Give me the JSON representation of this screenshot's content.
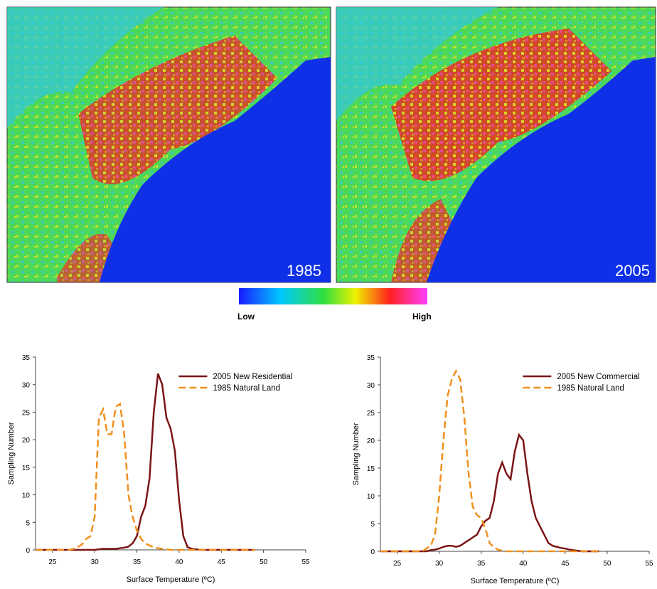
{
  "maps": [
    {
      "label": "1985"
    },
    {
      "label": "2005"
    }
  ],
  "colorbar": {
    "low": "Low",
    "high": "High"
  },
  "chart_data": [
    {
      "type": "line",
      "legend": "upper right",
      "xlabel": "Surface Temperature (ºC)",
      "ylabel": "Sampling Number",
      "xlim": [
        23,
        55
      ],
      "xticks": [
        25,
        30,
        35,
        40,
        45,
        50,
        55
      ],
      "ylim": [
        0,
        35
      ],
      "yticks": [
        0,
        5,
        10,
        15,
        20,
        25,
        30,
        35
      ],
      "x": [
        23,
        23.5,
        24,
        24.5,
        25,
        25.5,
        26,
        26.5,
        27,
        27.5,
        28,
        28.5,
        29,
        29.5,
        30,
        30.5,
        31,
        31.5,
        32,
        32.5,
        33,
        33.5,
        34,
        34.5,
        35,
        35.5,
        36,
        36.5,
        37,
        37.5,
        38,
        38.5,
        39,
        39.5,
        40,
        40.5,
        41,
        41.5,
        42,
        42.5,
        43,
        43.5,
        44,
        44.5,
        45,
        45.5,
        46,
        46.5,
        47,
        47.5,
        48,
        48.5,
        49
      ],
      "series": [
        {
          "name": "2005 New Residential",
          "color": "#7b1416",
          "dash": false,
          "values": [
            0,
            0,
            0,
            0,
            0,
            0,
            0,
            0,
            0,
            0,
            0,
            0,
            0,
            0,
            0,
            0.1,
            0.2,
            0.2,
            0.2,
            0.2,
            0.3,
            0.4,
            0.6,
            1.2,
            2.5,
            6,
            8,
            13,
            25,
            32,
            30,
            24,
            22,
            18,
            9,
            2.5,
            0.5,
            0.2,
            0.1,
            0,
            0,
            0,
            0,
            0,
            0,
            0,
            0,
            0,
            0,
            0,
            0,
            0,
            0
          ]
        },
        {
          "name": "1985 Natural Land",
          "color": "#f0901e",
          "dash": true,
          "values": [
            0,
            0,
            0,
            0,
            0,
            0,
            0,
            0,
            0,
            0.2,
            0.5,
            1,
            2,
            2.5,
            6,
            24,
            25.5,
            21,
            21,
            26,
            26.5,
            21,
            10,
            6,
            3.5,
            2,
            1.2,
            0.8,
            0.5,
            0.3,
            0.2,
            0.1,
            0,
            0,
            0,
            0,
            0,
            0,
            0,
            0,
            0,
            0,
            0,
            0,
            0,
            0,
            0,
            0,
            0,
            0,
            0,
            0,
            0
          ]
        }
      ]
    },
    {
      "type": "line",
      "legend": "upper right",
      "xlabel": "Surface Temperature (ºC)",
      "ylabel": "Sampling Number",
      "xlim": [
        23,
        55
      ],
      "xticks": [
        25,
        30,
        35,
        40,
        45,
        50,
        55
      ],
      "ylim": [
        0,
        35
      ],
      "yticks": [
        0,
        5,
        10,
        15,
        20,
        25,
        30,
        35
      ],
      "x": [
        23,
        23.5,
        24,
        24.5,
        25,
        25.5,
        26,
        26.5,
        27,
        27.5,
        28,
        28.5,
        29,
        29.5,
        30,
        30.5,
        31,
        31.5,
        32,
        32.5,
        33,
        33.5,
        34,
        34.5,
        35,
        35.5,
        36,
        36.5,
        37,
        37.5,
        38,
        38.5,
        39,
        39.5,
        40,
        40.5,
        41,
        41.5,
        42,
        42.5,
        43,
        43.5,
        44,
        44.5,
        45,
        45.5,
        46,
        46.5,
        47,
        47.5,
        48,
        48.5,
        49
      ],
      "series": [
        {
          "name": "2005 New Commercial",
          "color": "#7b1416",
          "dash": false,
          "values": [
            0,
            0,
            0,
            0,
            0,
            0,
            0,
            0,
            0,
            0,
            0,
            0,
            0.2,
            0.3,
            0.5,
            0.8,
            1,
            1,
            0.8,
            1,
            1.5,
            2,
            2.5,
            3,
            4.5,
            5.5,
            6,
            9,
            14,
            16,
            14,
            13,
            18,
            21,
            20,
            14,
            9,
            6,
            4.5,
            3,
            1.5,
            1,
            0.8,
            0.6,
            0.5,
            0.3,
            0.2,
            0.1,
            0,
            0,
            0,
            0,
            0
          ]
        },
        {
          "name": "1985 Natural Land",
          "color": "#f0901e",
          "dash": true,
          "values": [
            0,
            0,
            0,
            0,
            0,
            0,
            0,
            0,
            0,
            0,
            0,
            0.5,
            1,
            3,
            10,
            20,
            28,
            31,
            32.5,
            31,
            24,
            14,
            8,
            6.5,
            6,
            4,
            1.5,
            0.7,
            0.3,
            0.1,
            0,
            0,
            0,
            0,
            0,
            0,
            0,
            0,
            0,
            0,
            0,
            0,
            0,
            0,
            0,
            0,
            0,
            0,
            0,
            0,
            0,
            0,
            0
          ]
        }
      ]
    }
  ]
}
